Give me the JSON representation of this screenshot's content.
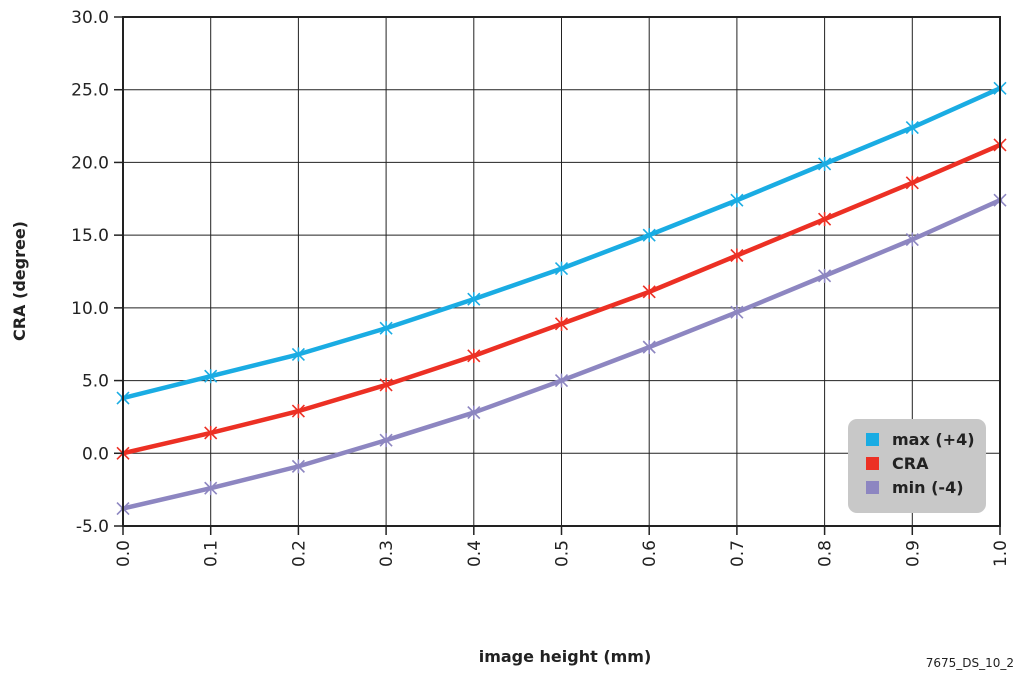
{
  "chart_data": {
    "type": "line",
    "xlabel": "image height (mm)",
    "ylabel": "CRA (degree)",
    "x": [
      0.0,
      0.1,
      0.2,
      0.3,
      0.4,
      0.5,
      0.6,
      0.7,
      0.8,
      0.9,
      1.0
    ],
    "x_tick_labels": [
      "0.0",
      "0.1",
      "0.2",
      "0.3",
      "0.4",
      "0.5",
      "0.6",
      "0.7",
      "0.8",
      "0.9",
      "1.0"
    ],
    "y_ticks": [
      -5.0,
      0.0,
      5.0,
      10.0,
      15.0,
      20.0,
      25.0,
      30.0
    ],
    "y_tick_labels": [
      "-5.0",
      "0.0",
      "5.0",
      "10.0",
      "15.0",
      "20.0",
      "25.0",
      "30.0"
    ],
    "xlim": [
      0.0,
      1.0
    ],
    "ylim": [
      -5.0,
      30.0
    ],
    "grid": true,
    "legend_position": "bottom-right",
    "series": [
      {
        "name": "max (+4)",
        "color": "#1aace3",
        "values": [
          3.8,
          5.3,
          6.8,
          8.6,
          10.6,
          12.7,
          15.0,
          17.4,
          19.9,
          22.4,
          25.1
        ]
      },
      {
        "name": "CRA",
        "color": "#ec3024",
        "values": [
          0.0,
          1.4,
          2.9,
          4.7,
          6.7,
          8.9,
          11.1,
          13.6,
          16.1,
          18.6,
          21.2
        ]
      },
      {
        "name": "min (-4)",
        "color": "#8d86c1",
        "values": [
          -3.8,
          -2.4,
          -0.9,
          0.9,
          2.8,
          5.0,
          7.3,
          9.7,
          12.2,
          14.7,
          17.4
        ]
      }
    ],
    "legend_box_color": "#c8c8c8",
    "marker": "asterisk-icon"
  },
  "figure_code": "7675_DS_10_2"
}
